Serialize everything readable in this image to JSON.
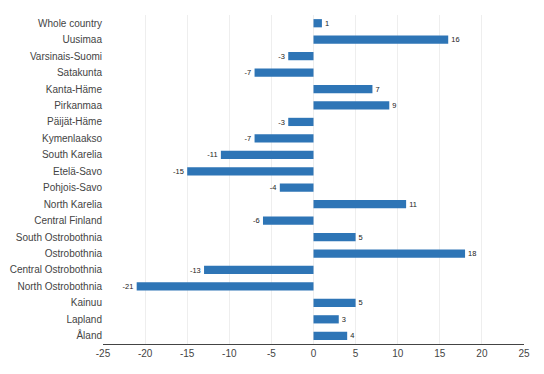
{
  "chart_data": {
    "type": "bar",
    "orientation": "horizontal",
    "categories": [
      "Whole country",
      "Uusimaa",
      "Varsinais-Suomi",
      "Satakunta",
      "Kanta-Häme",
      "Pirkanmaa",
      "Päijät-Häme",
      "Kymenlaakso",
      "South Karelia",
      "Etelä-Savo",
      "Pohjois-Savo",
      "North Karelia",
      "Central Finland",
      "South Ostrobothnia",
      "Ostrobothnia",
      "Central Ostrobothnia",
      "North Ostrobothnia",
      "Kainuu",
      "Lapland",
      "Åland"
    ],
    "values": [
      1,
      16,
      -3,
      -7,
      7,
      9,
      -3,
      -7,
      -11,
      -15,
      -4,
      11,
      -6,
      5,
      18,
      -13,
      -21,
      5,
      3,
      4
    ],
    "color": "#2E75B6",
    "xlim": [
      -25,
      25
    ],
    "xticks": [
      -25,
      -20,
      -15,
      -10,
      -5,
      0,
      5,
      10,
      15,
      20,
      25
    ],
    "grid": true,
    "data_labels": true
  }
}
